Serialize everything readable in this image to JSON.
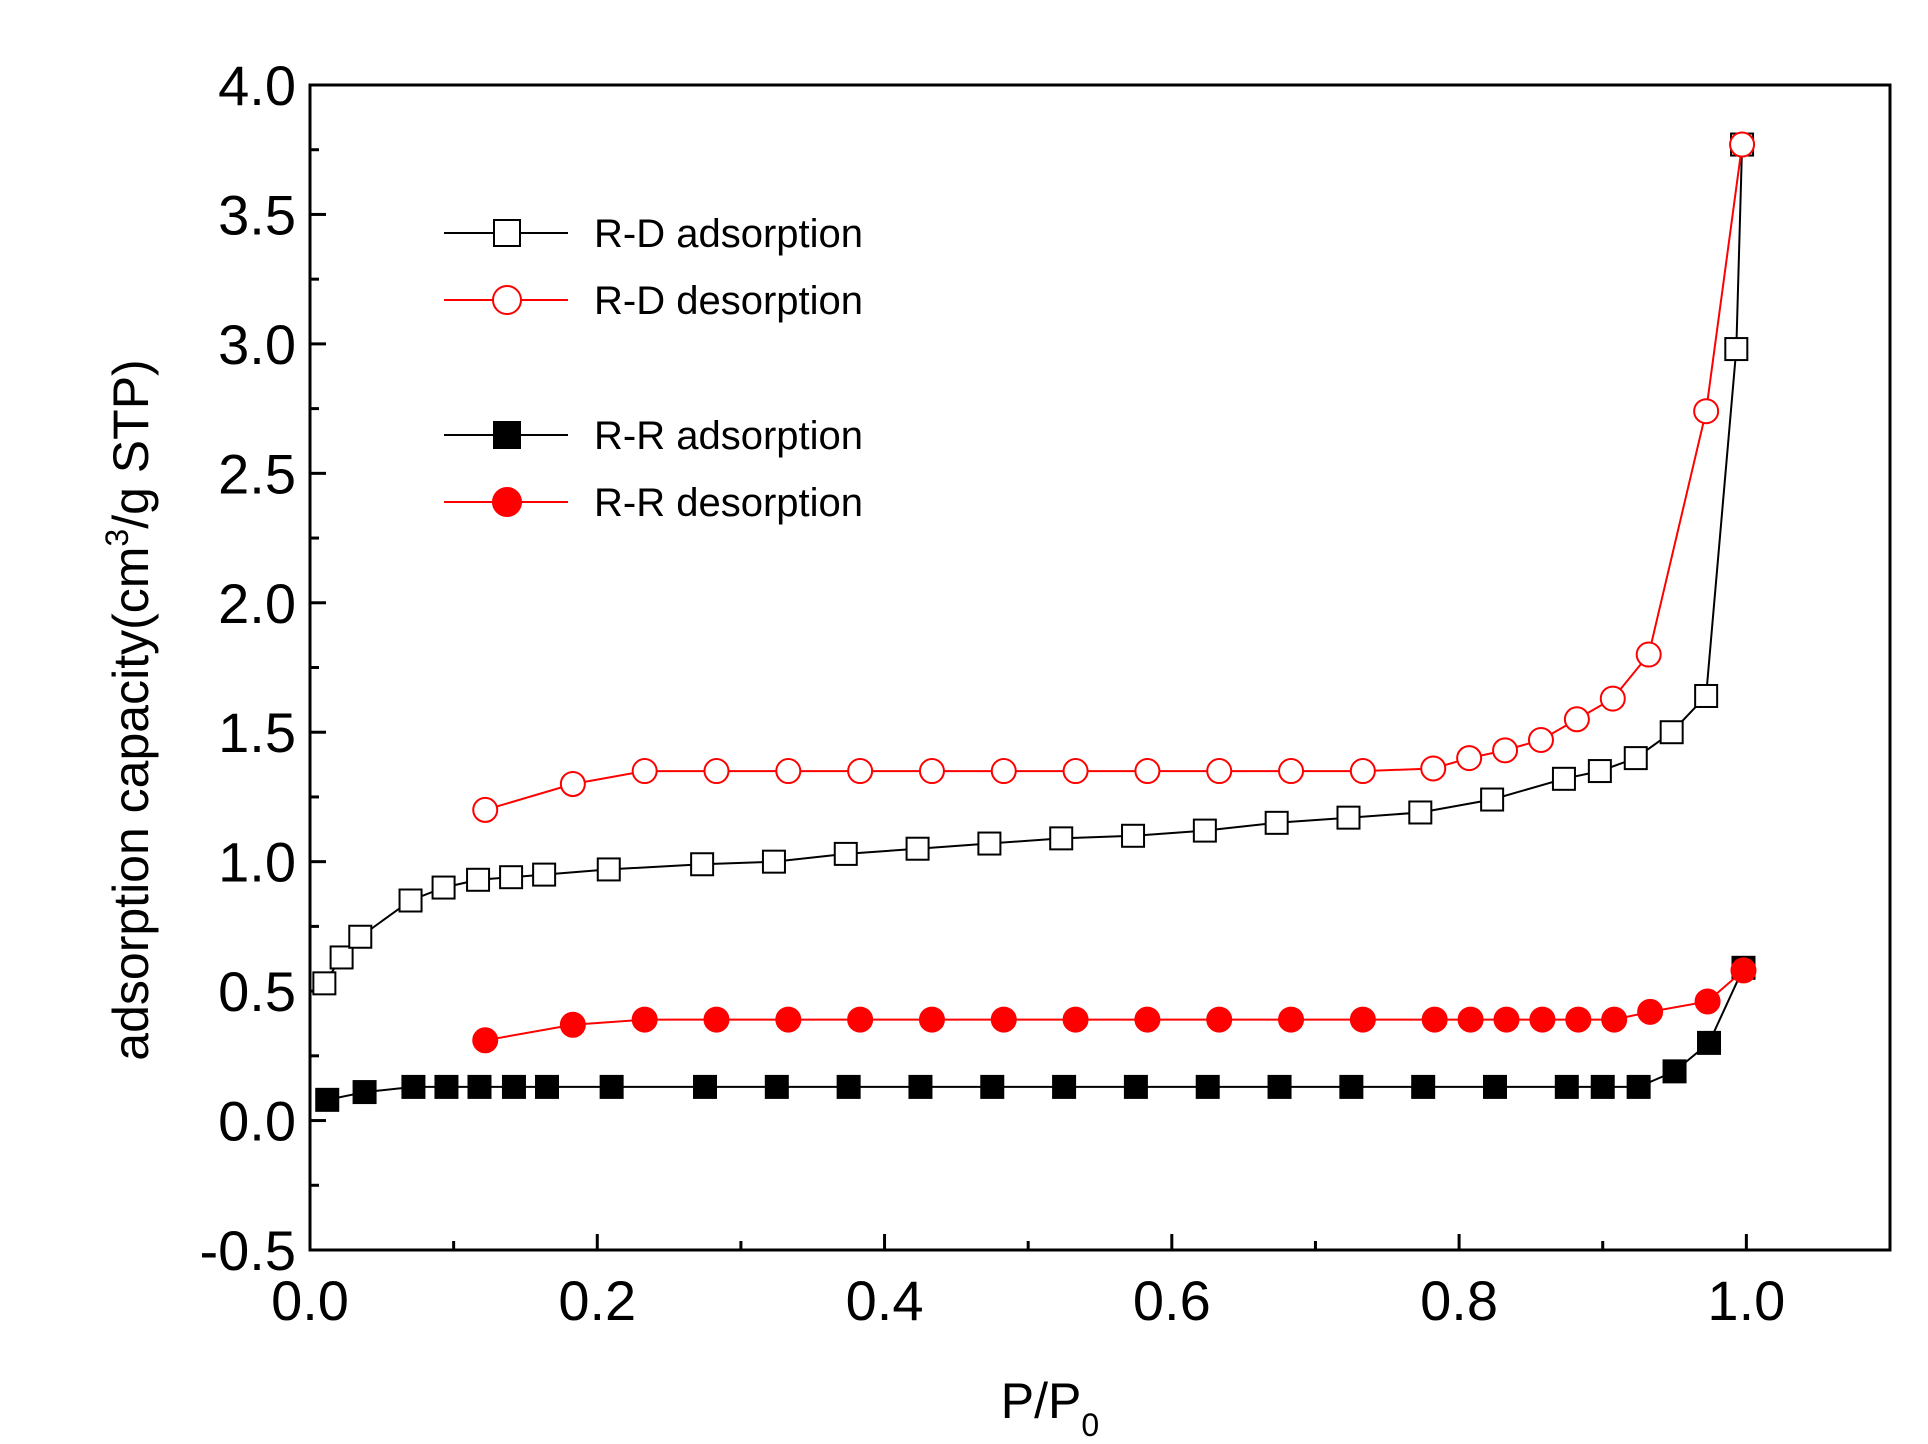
{
  "chart_data": {
    "type": "line",
    "title": "",
    "xlabel": "P/P",
    "xlabel_sub": "0",
    "ylabel": "adsorption capacity(cm",
    "ylabel_sup": "3",
    "ylabel_end": "/g STP)",
    "xlim": [
      0.0,
      1.1
    ],
    "ylim": [
      -0.5,
      4.0
    ],
    "x_ticks": [
      0.0,
      0.2,
      0.4,
      0.6,
      0.8,
      1.0
    ],
    "x_tick_labels": [
      "0.0",
      "0.2",
      "0.4",
      "0.6",
      "0.8",
      "1.0"
    ],
    "y_ticks": [
      -0.5,
      0.0,
      0.5,
      1.0,
      1.5,
      2.0,
      2.5,
      3.0,
      3.5,
      4.0
    ],
    "y_tick_labels": [
      "-0.5",
      "0.0",
      "0.5",
      "1.0",
      "1.5",
      "2.0",
      "2.5",
      "3.0",
      "3.5",
      "4.0"
    ],
    "grid": false,
    "legend_position": "top-left",
    "series": [
      {
        "name": "R-D adsorption",
        "color": "#000000",
        "marker": "square",
        "filled": false,
        "x": [
          0.01,
          0.022,
          0.035,
          0.07,
          0.093,
          0.117,
          0.14,
          0.163,
          0.208,
          0.273,
          0.323,
          0.373,
          0.423,
          0.473,
          0.523,
          0.573,
          0.623,
          0.673,
          0.723,
          0.773,
          0.823,
          0.873,
          0.898,
          0.923,
          0.948,
          0.972,
          0.993,
          0.997
        ],
        "y": [
          0.53,
          0.63,
          0.71,
          0.85,
          0.9,
          0.93,
          0.94,
          0.95,
          0.97,
          0.99,
          1.0,
          1.03,
          1.05,
          1.07,
          1.09,
          1.1,
          1.12,
          1.15,
          1.17,
          1.19,
          1.24,
          1.32,
          1.35,
          1.4,
          1.5,
          1.64,
          2.98,
          3.77
        ]
      },
      {
        "name": "R-D desorption",
        "color": "#ff0000",
        "marker": "circle",
        "filled": false,
        "x": [
          0.997,
          0.972,
          0.932,
          0.907,
          0.882,
          0.857,
          0.832,
          0.807,
          0.782,
          0.733,
          0.683,
          0.633,
          0.583,
          0.533,
          0.483,
          0.433,
          0.383,
          0.333,
          0.283,
          0.233,
          0.183,
          0.122
        ],
        "y": [
          3.77,
          2.74,
          1.8,
          1.63,
          1.55,
          1.47,
          1.43,
          1.4,
          1.36,
          1.35,
          1.35,
          1.35,
          1.35,
          1.35,
          1.35,
          1.35,
          1.35,
          1.35,
          1.35,
          1.35,
          1.3,
          1.2
        ]
      },
      {
        "name": "R-R adsorption",
        "color": "#000000",
        "marker": "square",
        "filled": true,
        "x": [
          0.012,
          0.038,
          0.072,
          0.095,
          0.118,
          0.142,
          0.165,
          0.21,
          0.275,
          0.325,
          0.375,
          0.425,
          0.475,
          0.525,
          0.575,
          0.625,
          0.675,
          0.725,
          0.775,
          0.825,
          0.875,
          0.9,
          0.925,
          0.95,
          0.974,
          0.998
        ],
        "y": [
          0.08,
          0.11,
          0.13,
          0.13,
          0.13,
          0.13,
          0.13,
          0.13,
          0.13,
          0.13,
          0.13,
          0.13,
          0.13,
          0.13,
          0.13,
          0.13,
          0.13,
          0.13,
          0.13,
          0.13,
          0.13,
          0.13,
          0.13,
          0.19,
          0.3,
          0.59
        ]
      },
      {
        "name": "R-R desorption",
        "color": "#ff0000",
        "marker": "circle",
        "filled": true,
        "x": [
          0.998,
          0.973,
          0.933,
          0.908,
          0.883,
          0.858,
          0.833,
          0.808,
          0.783,
          0.733,
          0.683,
          0.633,
          0.583,
          0.533,
          0.483,
          0.433,
          0.383,
          0.333,
          0.283,
          0.233,
          0.183,
          0.122
        ],
        "y": [
          0.58,
          0.46,
          0.42,
          0.39,
          0.39,
          0.39,
          0.39,
          0.39,
          0.39,
          0.39,
          0.39,
          0.39,
          0.39,
          0.39,
          0.39,
          0.39,
          0.39,
          0.39,
          0.39,
          0.39,
          0.37,
          0.31
        ]
      }
    ]
  }
}
